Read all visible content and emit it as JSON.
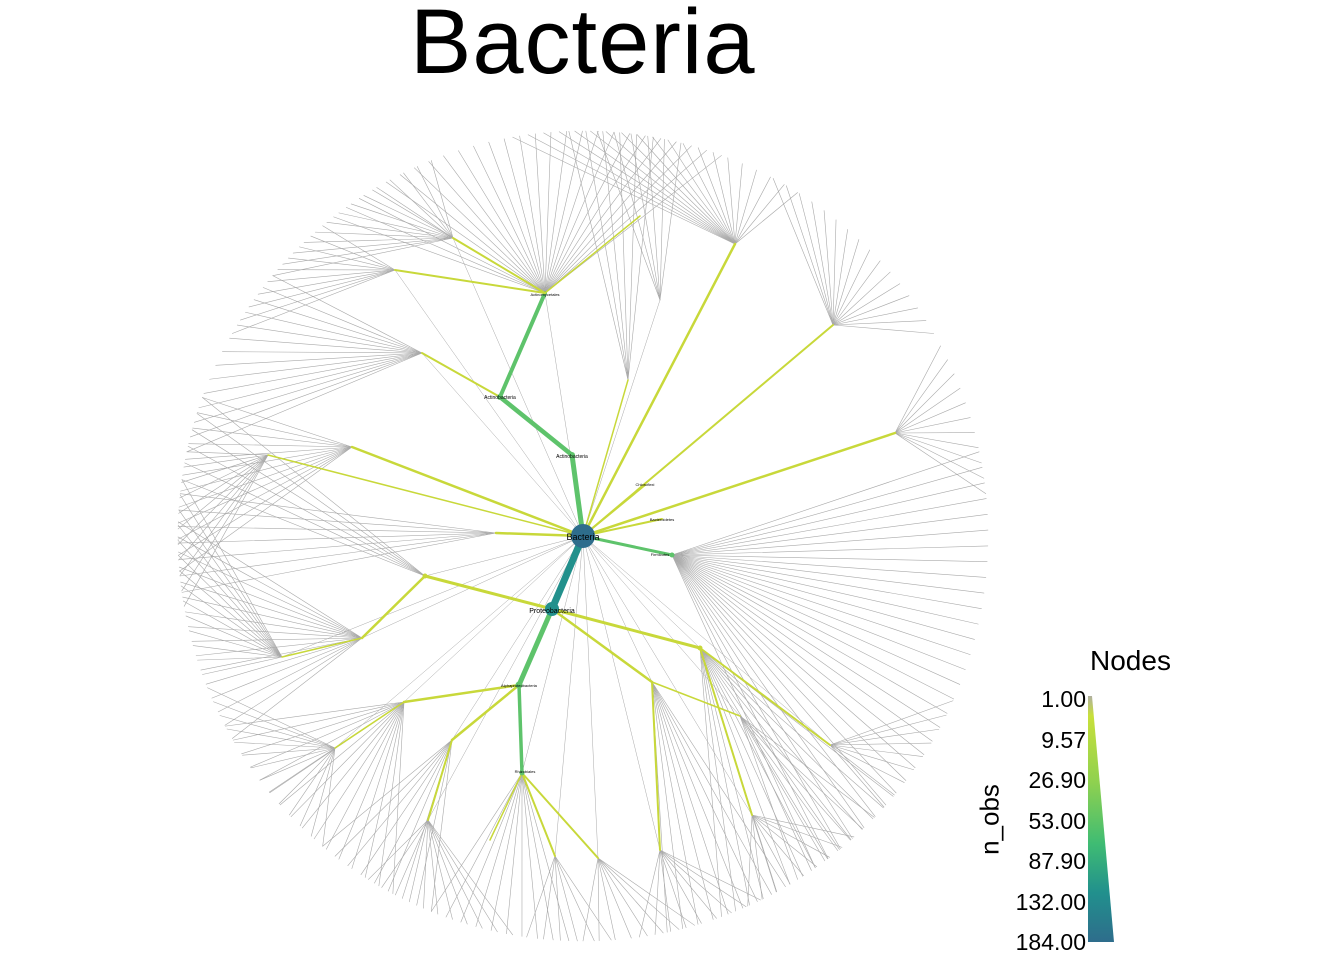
{
  "title": "Bacteria",
  "legend": {
    "title": "Nodes",
    "axis_label": "n_obs",
    "ticks": [
      "1.00",
      "9.57",
      "26.90",
      "53.00",
      "87.90",
      "132.00",
      "184.00"
    ]
  },
  "nodes": {
    "root": "Bacteria",
    "proteobacteria": "Proteobacteria",
    "actinobacteria_1": "Actinobacteria",
    "actinobacteria_2": "Actinobacteria",
    "actinomycetales": "Actinomycetales",
    "alphaproteobacteria": "Alphaproteobacteria",
    "rhizobiales": "Rhizobiales",
    "bacteroidetes": "Bacteroidetes",
    "firmicutes": "Firmicutes",
    "chloroflexi": "Chloroflexi"
  },
  "colors": {
    "low": "#c8d83a",
    "mid": "#5ec36b",
    "high": "#22908c",
    "top": "#2e6d8c",
    "leaf_edge": "#a9a9a9"
  }
}
